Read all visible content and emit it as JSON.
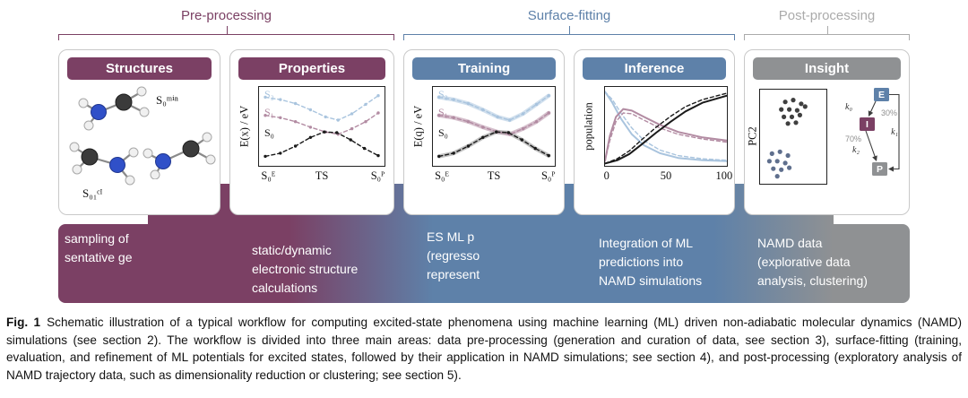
{
  "stages": {
    "pre": {
      "label": "Pre-processing",
      "color": "#7B4064"
    },
    "surface": {
      "label": "Surface-fitting",
      "color": "#5E81A9"
    },
    "post": {
      "label": "Post-processing",
      "color": "#ABABAB"
    }
  },
  "panels": {
    "structures": {
      "title": "Structures",
      "min_label": "S₀ᵐⁱⁿ",
      "ci_label": "S₀₁ᶜᴵ"
    },
    "properties": {
      "title": "Properties"
    },
    "training": {
      "title": "Training"
    },
    "inference": {
      "title": "Inference"
    },
    "insight": {
      "title": "Insight",
      "scheme": {
        "e": "E",
        "i": "I",
        "p": "P",
        "k0": "k₀",
        "k1": "k₁",
        "k2": "k₂",
        "pct30": "30%",
        "pct70": "70%"
      }
    }
  },
  "band": {
    "items": [
      {
        "text": "sampling of\nsentative ge"
      },
      {
        "text": "static/dynamic\nelectronic structure\ncalculations"
      },
      {
        "text": "ES ML p\n(regresso\nrepresent"
      },
      {
        "text": "Integration of ML\npredictions into\nNAMD simulations"
      },
      {
        "text": "NAMD data\n(explorative data\nanalysis, clustering)"
      }
    ]
  },
  "caption": {
    "label": "Fig. 1",
    "text": "Schematic illustration of a typical workflow for computing excited-state phenomena using machine learning (ML) driven non-adiabatic molecular dynamics (NAMD) simulations (see section 2). The workflow is divided into three main areas: data pre-processing (generation and curation of data, see section 3), surface-fitting (training, evaluation, and refinement of ML potentials for excited states, followed by their application in NAMD simulations; see section 4), and post-processing (exploratory analysis of NAMD trajectory data, such as dimensionality reduction or clustering; see section 5)."
  },
  "colors": {
    "maroon": "#7B4064",
    "blue": "#5E81A9",
    "gray": "#8F9193",
    "s2": "#A9C4DE",
    "s1": "#B28BA2",
    "s0": "#1A1A1A"
  },
  "chart_data": {
    "properties": {
      "type": "line",
      "ylabel": "E(x) / eV",
      "xticks": [
        "S₀ᴱ",
        "TS",
        "S₀ᴾ"
      ],
      "series_labels": [
        "S₂",
        "S₁",
        "S₀"
      ],
      "series": [
        {
          "name": "S2 reference",
          "color": "#A9C4DE",
          "dash": "4 3",
          "width": 1.4,
          "markers": true,
          "points": [
            [
              5,
              13
            ],
            [
              17,
              16
            ],
            [
              29,
              21
            ],
            [
              41,
              29
            ],
            [
              53,
              38
            ],
            [
              63,
              42
            ],
            [
              74,
              34
            ],
            [
              85,
              22
            ],
            [
              95,
              11
            ]
          ]
        },
        {
          "name": "S1 reference",
          "color": "#B28BA2",
          "dash": "4 3",
          "width": 1.4,
          "markers": true,
          "points": [
            [
              5,
              36
            ],
            [
              17,
              39
            ],
            [
              29,
              44
            ],
            [
              41,
              51
            ],
            [
              53,
              57
            ],
            [
              63,
              60
            ],
            [
              74,
              53
            ],
            [
              85,
              44
            ],
            [
              95,
              33
            ]
          ]
        },
        {
          "name": "S0 reference",
          "color": "#1A1A1A",
          "dash": "4 3",
          "width": 1.4,
          "markers": true,
          "points": [
            [
              5,
              88
            ],
            [
              17,
              84
            ],
            [
              29,
              75
            ],
            [
              41,
              64
            ],
            [
              52,
              57
            ],
            [
              62,
              58
            ],
            [
              73,
              67
            ],
            [
              84,
              78
            ],
            [
              95,
              87
            ]
          ]
        }
      ]
    },
    "training": {
      "type": "line",
      "ylabel": "E(q) / eV",
      "xticks": [
        "S₀ᴱ",
        "TS",
        "S₀ᴾ"
      ],
      "series_labels": [
        "S₂",
        "S₁",
        "S₀"
      ],
      "series": [
        {
          "name": "S2 ML fit",
          "color": "#A9C4DE",
          "width": 4.5,
          "opacity": 0.55,
          "points": [
            [
              5,
              13
            ],
            [
              17,
              16
            ],
            [
              29,
              21
            ],
            [
              41,
              29
            ],
            [
              53,
              38
            ],
            [
              63,
              42
            ],
            [
              74,
              34
            ],
            [
              85,
              22
            ],
            [
              95,
              11
            ]
          ]
        },
        {
          "name": "S1 ML fit",
          "color": "#B28BA2",
          "width": 4.5,
          "opacity": 0.55,
          "points": [
            [
              5,
              36
            ],
            [
              17,
              39
            ],
            [
              29,
              44
            ],
            [
              41,
              51
            ],
            [
              53,
              57
            ],
            [
              63,
              60
            ],
            [
              74,
              53
            ],
            [
              85,
              44
            ],
            [
              95,
              33
            ]
          ]
        },
        {
          "name": "S0 ML fit",
          "color": "#A0A0A0",
          "width": 4.5,
          "opacity": 0.65,
          "points": [
            [
              5,
              88
            ],
            [
              17,
              84
            ],
            [
              29,
              75
            ],
            [
              41,
              64
            ],
            [
              52,
              57
            ],
            [
              62,
              58
            ],
            [
              73,
              67
            ],
            [
              84,
              78
            ],
            [
              95,
              87
            ]
          ]
        },
        {
          "name": "S2 reference",
          "color": "#A9C4DE",
          "dash": "4 3",
          "width": 1.4,
          "markers": true,
          "points": [
            [
              5,
              13
            ],
            [
              17,
              16
            ],
            [
              29,
              21
            ],
            [
              41,
              29
            ],
            [
              53,
              38
            ],
            [
              63,
              42
            ],
            [
              74,
              34
            ],
            [
              85,
              22
            ],
            [
              95,
              11
            ]
          ]
        },
        {
          "name": "S1 reference",
          "color": "#B28BA2",
          "dash": "4 3",
          "width": 1.4,
          "markers": true,
          "points": [
            [
              5,
              36
            ],
            [
              17,
              39
            ],
            [
              29,
              44
            ],
            [
              41,
              51
            ],
            [
              53,
              57
            ],
            [
              63,
              60
            ],
            [
              74,
              53
            ],
            [
              85,
              44
            ],
            [
              95,
              33
            ]
          ]
        },
        {
          "name": "S0 reference",
          "color": "#1A1A1A",
          "dash": "4 3",
          "width": 1.4,
          "markers": true,
          "points": [
            [
              5,
              88
            ],
            [
              17,
              84
            ],
            [
              29,
              75
            ],
            [
              41,
              64
            ],
            [
              52,
              57
            ],
            [
              62,
              58
            ],
            [
              73,
              67
            ],
            [
              84,
              78
            ],
            [
              95,
              87
            ]
          ]
        }
      ]
    },
    "inference": {
      "type": "line",
      "ylabel": "population",
      "xticks": [
        "0",
        "50",
        "100"
      ],
      "xlim": [
        0,
        100
      ],
      "ylim": [
        0,
        1
      ],
      "series": [
        {
          "name": "S2 reference",
          "color": "#A9C4DE",
          "dash": "4 3",
          "width": 1.4,
          "points": [
            [
              0,
              6
            ],
            [
              6,
              16
            ],
            [
              13,
              33
            ],
            [
              22,
              52
            ],
            [
              32,
              68
            ],
            [
              45,
              80
            ],
            [
              60,
              87
            ],
            [
              80,
              91
            ],
            [
              100,
              93
            ]
          ]
        },
        {
          "name": "S2 ML",
          "color": "#A9C4DE",
          "width": 2,
          "points": [
            [
              0,
              6
            ],
            [
              6,
              20
            ],
            [
              13,
              40
            ],
            [
              22,
              60
            ],
            [
              32,
              74
            ],
            [
              45,
              84
            ],
            [
              60,
              90
            ],
            [
              80,
              93
            ],
            [
              100,
              94
            ]
          ]
        },
        {
          "name": "S1 reference",
          "color": "#B28BA2",
          "dash": "4 3",
          "width": 1.4,
          "points": [
            [
              0,
              94
            ],
            [
              4,
              68
            ],
            [
              9,
              44
            ],
            [
              15,
              33
            ],
            [
              22,
              34
            ],
            [
              32,
              42
            ],
            [
              45,
              52
            ],
            [
              60,
              60
            ],
            [
              80,
              66
            ],
            [
              100,
              70
            ]
          ]
        },
        {
          "name": "S1 ML",
          "color": "#B28BA2",
          "width": 2,
          "points": [
            [
              0,
              94
            ],
            [
              4,
              62
            ],
            [
              9,
              38
            ],
            [
              15,
              28
            ],
            [
              22,
              30
            ],
            [
              32,
              38
            ],
            [
              45,
              48
            ],
            [
              60,
              57
            ],
            [
              80,
              64
            ],
            [
              100,
              68
            ]
          ]
        },
        {
          "name": "S0 reference",
          "color": "#1A1A1A",
          "dash": "4 3",
          "width": 1.4,
          "points": [
            [
              0,
              97
            ],
            [
              10,
              91
            ],
            [
              20,
              81
            ],
            [
              30,
              67
            ],
            [
              42,
              51
            ],
            [
              54,
              37
            ],
            [
              66,
              25
            ],
            [
              80,
              16
            ],
            [
              100,
              8
            ]
          ]
        },
        {
          "name": "S0 ML",
          "color": "#1A1A1A",
          "width": 2,
          "points": [
            [
              0,
              97
            ],
            [
              10,
              93
            ],
            [
              20,
              85
            ],
            [
              30,
              73
            ],
            [
              42,
              58
            ],
            [
              54,
              44
            ],
            [
              66,
              31
            ],
            [
              80,
              20
            ],
            [
              100,
              11
            ]
          ]
        }
      ]
    },
    "insight_scatter": {
      "type": "scatter",
      "ylabel": "PC2",
      "clusters": [
        {
          "name": "cluster-a",
          "color": "#3F3F3F",
          "points": [
            [
              38,
              13
            ],
            [
              50,
              11
            ],
            [
              62,
              15
            ],
            [
              32,
              21
            ],
            [
              44,
              21
            ],
            [
              56,
              22
            ],
            [
              68,
              18
            ],
            [
              36,
              29
            ],
            [
              48,
              29
            ],
            [
              60,
              27
            ],
            [
              42,
              36
            ],
            [
              54,
              35
            ]
          ]
        },
        {
          "name": "cluster-b",
          "color": "#5F6F8D",
          "points": [
            [
              18,
              68
            ],
            [
              30,
              66
            ],
            [
              42,
              70
            ],
            [
              14,
              76
            ],
            [
              26,
              76
            ],
            [
              38,
              78
            ],
            [
              20,
              84
            ],
            [
              32,
              85
            ],
            [
              44,
              83
            ],
            [
              26,
              92
            ]
          ]
        }
      ]
    }
  }
}
